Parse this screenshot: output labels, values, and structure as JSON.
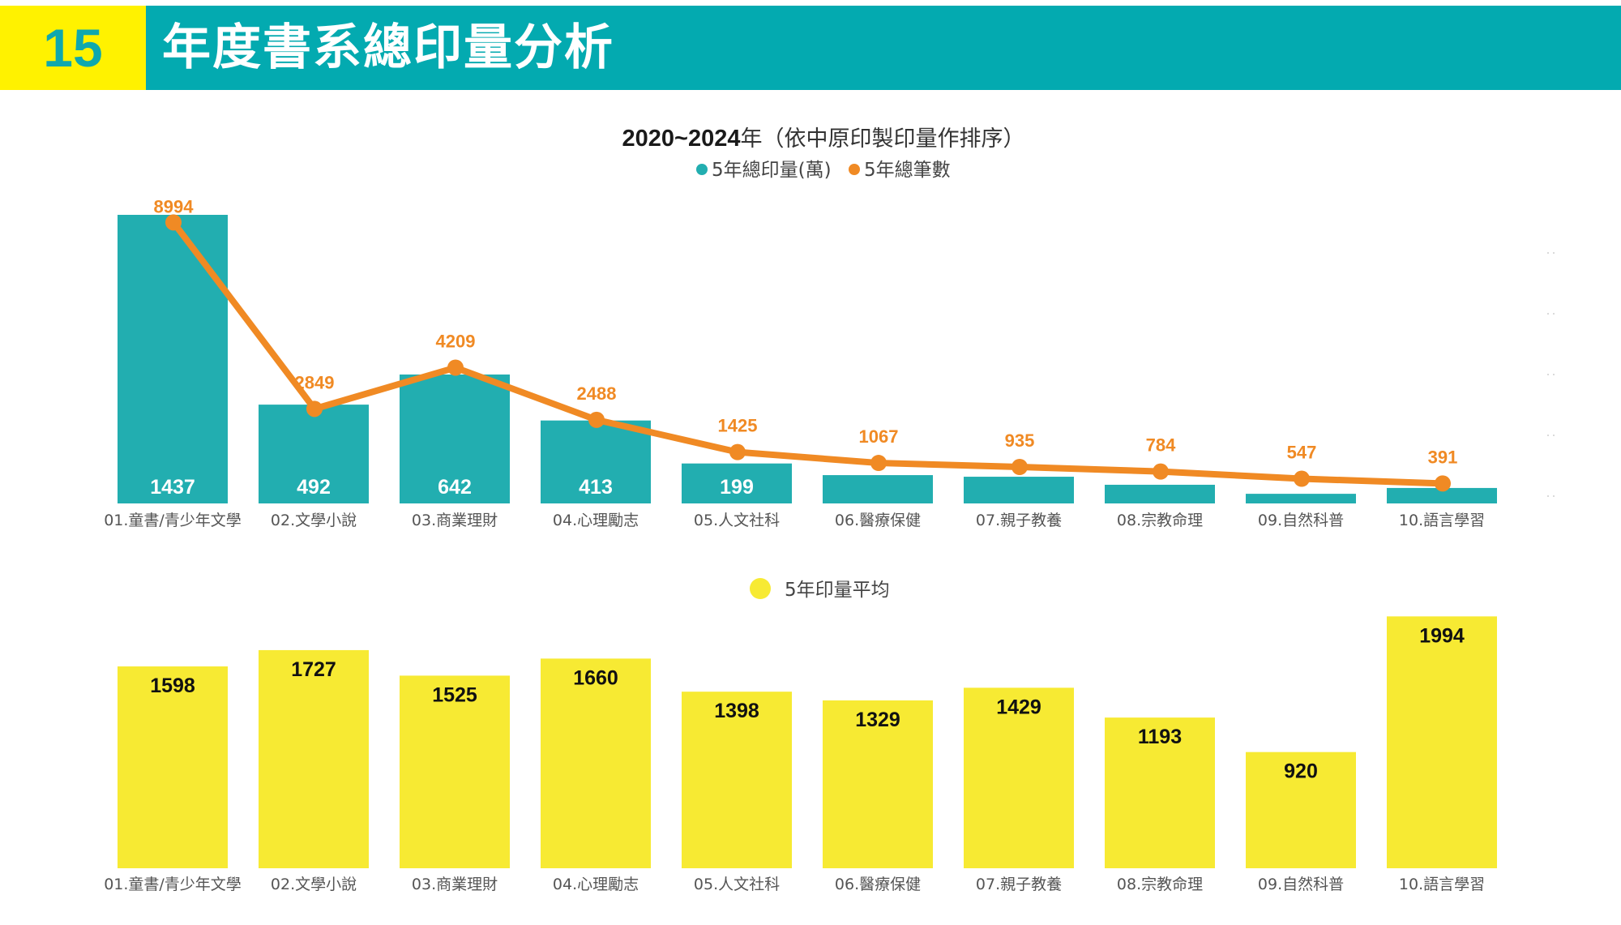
{
  "header": {
    "number": "15",
    "title": "年度書系總印量分析"
  },
  "colors": {
    "header_bg": "#03AAB0",
    "header_number_bg": "#FFF200",
    "bar_total": "#22AEB0",
    "line_count": "#F08A24",
    "bar_average": "#F7EA33"
  },
  "chart_data": [
    {
      "type": "bar+line",
      "title_year": "2020~2024",
      "title_rest": "年（依中原印製印量作排序）",
      "categories": [
        "01.童書/青少年文學",
        "02.文學小說",
        "03.商業理財",
        "04.心理勵志",
        "05.人文社科",
        "06.醫療保健",
        "07.親子教養",
        "08.宗教命理",
        "09.自然科普",
        "10.語言學習"
      ],
      "series": [
        {
          "name": "5年總印量(萬)",
          "type": "bar",
          "axis": "primary",
          "values": [
            1437,
            492,
            642,
            413,
            199,
            141,
            133,
            93,
            48,
            77
          ],
          "labels": [
            "1437",
            "492",
            "642",
            "413",
            "199",
            "",
            "",
            "",
            "",
            ""
          ]
        },
        {
          "name": "5年總筆數",
          "type": "line",
          "axis": "secondary",
          "values": [
            8994,
            2849,
            4209,
            2488,
            1425,
            1067,
            935,
            784,
            547,
            391
          ],
          "labels": [
            "8994",
            "2849",
            "4209",
            "2488",
            "1425",
            "1067",
            "935",
            "784",
            "547",
            "391"
          ]
        }
      ],
      "legend": [
        "5年總印量(萬)",
        "5年總筆數"
      ],
      "legend_position": "top-center",
      "primary_ylim": [
        0,
        1437
      ],
      "secondary_ylim": [
        0,
        9000
      ],
      "grid": false
    },
    {
      "type": "bar",
      "categories": [
        "01.童書/青少年文學",
        "02.文學小說",
        "03.商業理財",
        "04.心理勵志",
        "05.人文社科",
        "06.醫療保健",
        "07.親子教養",
        "08.宗教命理",
        "09.自然科普",
        "10.語言學習"
      ],
      "series": [
        {
          "name": "5年印量平均",
          "values": [
            1598,
            1727,
            1525,
            1660,
            1398,
            1329,
            1429,
            1193,
            920,
            1994
          ]
        }
      ],
      "legend": [
        "5年印量平均"
      ],
      "legend_position": "top-center",
      "ylim": [
        0,
        2000
      ],
      "grid": false
    }
  ]
}
